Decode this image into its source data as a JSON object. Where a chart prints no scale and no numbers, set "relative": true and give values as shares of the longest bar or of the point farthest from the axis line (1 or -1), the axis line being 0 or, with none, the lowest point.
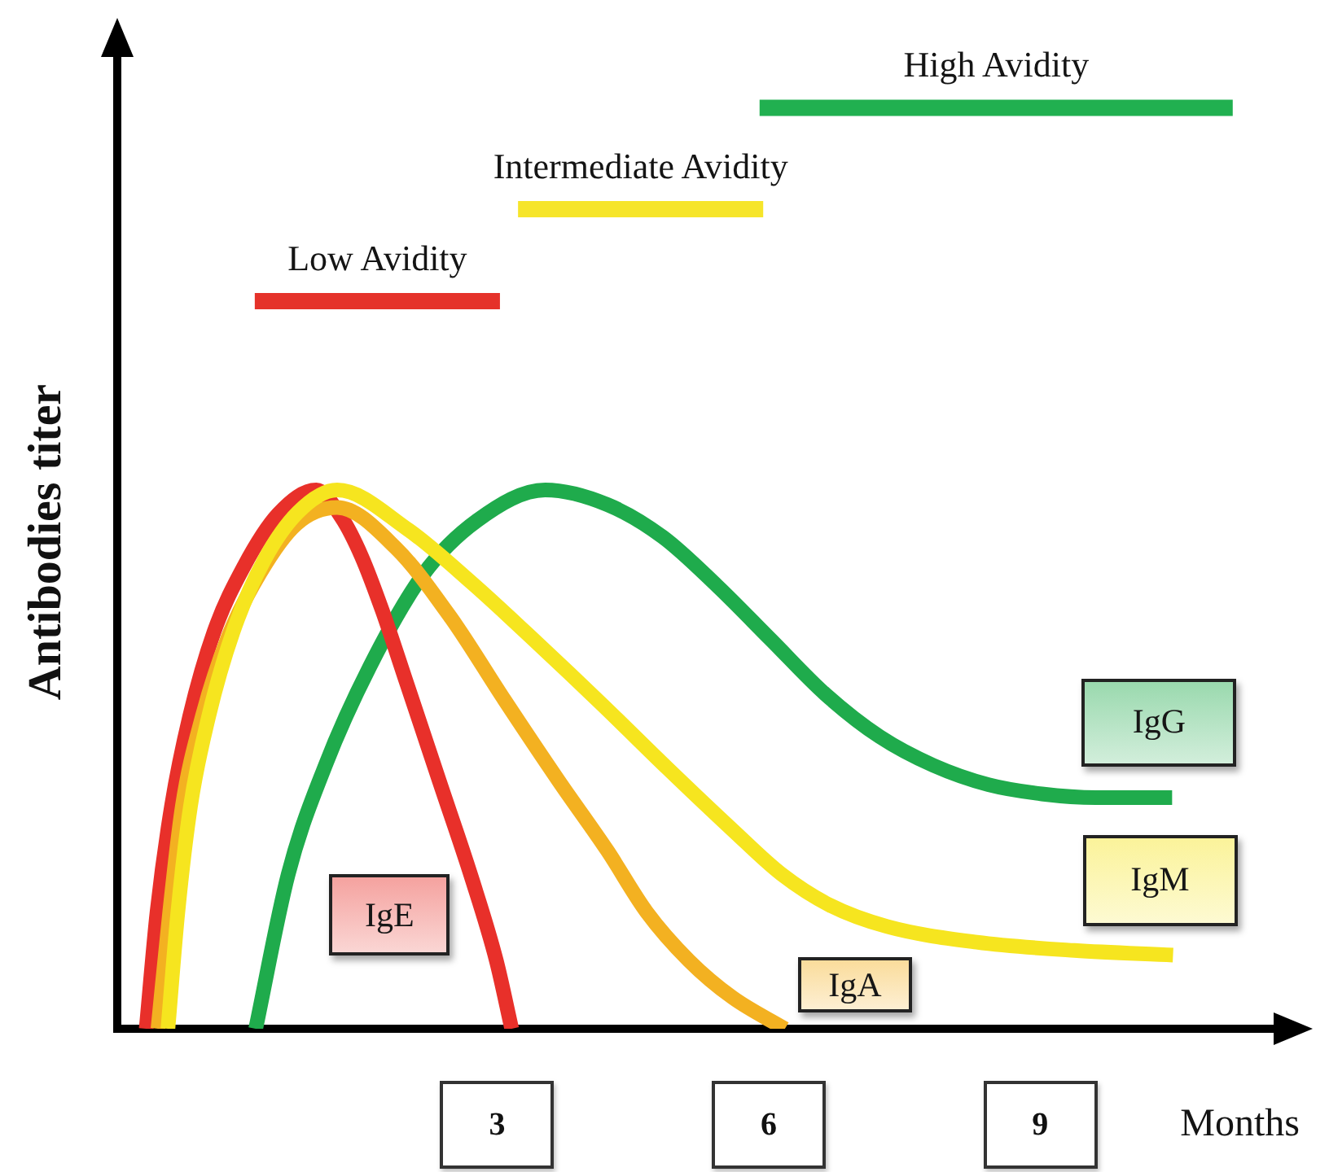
{
  "chart_data": {
    "type": "line",
    "xlabel": "Months",
    "ylabel": "Antibodies titer",
    "relative": true,
    "xlim": [
      -1.2,
      11.6
    ],
    "xticks": [
      3,
      6,
      9
    ],
    "series": [
      {
        "name": "IgM",
        "color": "#f6e51f",
        "x": [
          -0.64,
          -0.53,
          -0.39,
          -0.19,
          0.08,
          0.42,
          0.8,
          1.23,
          2.0,
          2.72,
          3.44,
          4.16,
          4.88,
          5.6,
          6.14,
          6.68,
          7.31,
          8.3,
          9.38,
          10.47
        ],
        "values": [
          0,
          0.127,
          0.242,
          0.339,
          0.431,
          0.508,
          0.561,
          0.585,
          0.543,
          0.484,
          0.419,
          0.352,
          0.283,
          0.216,
          0.168,
          0.134,
          0.111,
          0.094,
          0.085,
          0.08
        ]
      },
      {
        "name": "IgA",
        "color": "#f3b121",
        "x": [
          -0.75,
          -0.62,
          -0.48,
          -0.26,
          0.02,
          0.38,
          0.78,
          1.23,
          1.88,
          2.49,
          3.08,
          3.68,
          4.22,
          4.65,
          5.12,
          5.6,
          6.18
        ],
        "values": [
          0,
          0.127,
          0.242,
          0.339,
          0.424,
          0.495,
          0.548,
          0.566,
          0.522,
          0.446,
          0.357,
          0.269,
          0.193,
          0.127,
          0.074,
          0.034,
          0
        ]
      },
      {
        "name": "IgE",
        "color": "#e8302a",
        "x": [
          -0.88,
          -0.76,
          -0.6,
          -0.4,
          -0.13,
          0.2,
          0.58,
          1.0,
          1.28,
          1.5,
          1.73,
          2.0,
          2.36,
          2.72,
          2.99,
          3.16
        ],
        "values": [
          0,
          0.127,
          0.242,
          0.339,
          0.431,
          0.502,
          0.559,
          0.585,
          0.555,
          0.513,
          0.454,
          0.375,
          0.269,
          0.163,
          0.074,
          0
        ]
      },
      {
        "name": "IgG",
        "color": "#1fab4c",
        "x": [
          0.33,
          0.69,
          1.1,
          1.59,
          2.18,
          2.78,
          3.53,
          4.22,
          4.83,
          5.43,
          6.02,
          6.63,
          7.23,
          7.82,
          8.43,
          9.02,
          9.62,
          10.46
        ],
        "values": [
          0,
          0.168,
          0.286,
          0.393,
          0.493,
          0.552,
          0.585,
          0.569,
          0.534,
          0.481,
          0.423,
          0.363,
          0.317,
          0.286,
          0.265,
          0.255,
          0.251,
          0.251
        ]
      },
      {
        "name": "Low Avidity",
        "color": "#e5322a",
        "x": [
          0.32,
          3.03
        ],
        "values": [
          0.79,
          0.79
        ]
      },
      {
        "name": "Intermediate Avidity",
        "color": "#f6e52a",
        "x": [
          3.23,
          5.94
        ],
        "values": [
          0.89,
          0.89
        ]
      },
      {
        "name": "High Avidity",
        "color": "#21b050",
        "x": [
          5.9,
          11.13
        ],
        "values": [
          1,
          1
        ]
      }
    ]
  }
}
